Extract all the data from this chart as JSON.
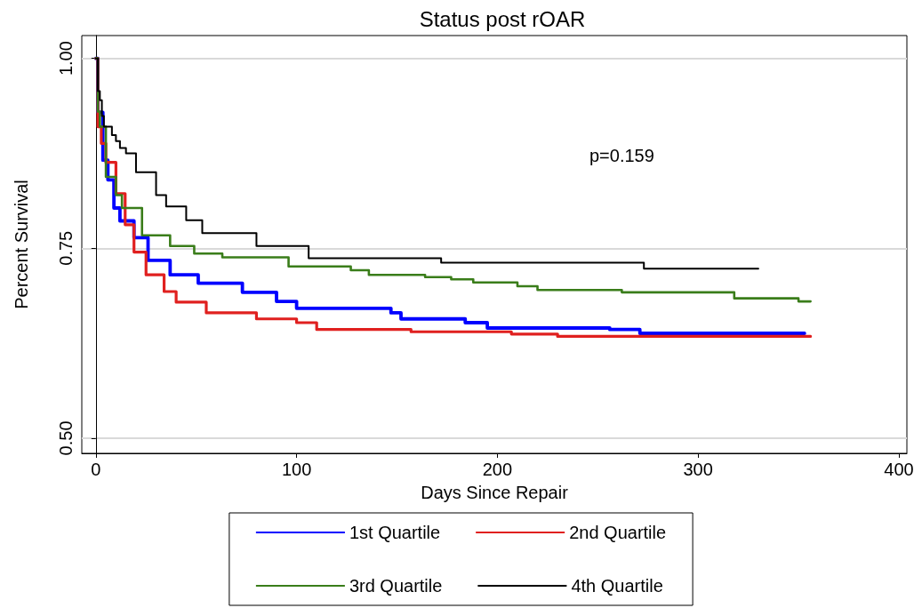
{
  "chart_data": {
    "type": "step",
    "title": "Status post rOAR",
    "xlabel": "Days Since Repair",
    "ylabel": "Percent Survival",
    "annotations": [
      "p=0.159"
    ],
    "xlim": [
      -7,
      404
    ],
    "xticks": [
      0,
      100,
      200,
      300,
      400
    ],
    "ylim": [
      0.48,
      1.03
    ],
    "yticks": [
      {
        "value": 0.5,
        "label": "0.50"
      },
      {
        "value": 0.75,
        "label": "0.75"
      },
      {
        "value": 1,
        "label": "1.00"
      }
    ],
    "grid": "y",
    "legend": "bottom",
    "marker": "none",
    "line_style": "solid",
    "series": [
      {
        "name": "1st Quartile",
        "color": "#0000ff",
        "x": [
          0,
          1,
          3.5,
          6,
          9,
          12,
          19,
          26,
          37,
          51,
          73,
          90,
          100,
          147,
          152,
          184,
          195,
          256,
          271,
          353
        ],
        "values": [
          1,
          0.929,
          0.866,
          0.84,
          0.803,
          0.786,
          0.764,
          0.734,
          0.715,
          0.704,
          0.692,
          0.68,
          0.671,
          0.665,
          0.657,
          0.652,
          0.645,
          0.643,
          0.638,
          0.638
        ]
      },
      {
        "name": "2nd Quartile",
        "color": "#e0201f",
        "x": [
          0,
          1,
          2.7,
          5,
          10,
          14.6,
          19,
          25,
          34,
          40,
          55,
          80,
          100,
          110,
          157,
          207,
          230,
          356
        ],
        "values": [
          1,
          0.91,
          0.888,
          0.863,
          0.822,
          0.781,
          0.745,
          0.715,
          0.693,
          0.679,
          0.665,
          0.657,
          0.652,
          0.643,
          0.64,
          0.637,
          0.634,
          0.634
        ]
      },
      {
        "name": "3rd Quartile",
        "color": "#3a7d1a",
        "x": [
          0,
          1,
          2,
          5,
          10,
          13,
          23,
          37,
          49,
          63,
          96,
          127,
          136,
          164,
          177,
          188,
          210,
          220,
          262,
          318,
          350,
          356
        ],
        "values": [
          1,
          0.93,
          0.91,
          0.844,
          0.82,
          0.803,
          0.767,
          0.753,
          0.743,
          0.738,
          0.726,
          0.721,
          0.715,
          0.712,
          0.709,
          0.705,
          0.7,
          0.695,
          0.692,
          0.684,
          0.68,
          0.68
        ]
      },
      {
        "name": "4th Quartile",
        "color": "#000000",
        "x": [
          0,
          1,
          2,
          3,
          4,
          8,
          10,
          12,
          15,
          20,
          30,
          35,
          45,
          53,
          80,
          106,
          172,
          273,
          330
        ],
        "values": [
          1,
          0.957,
          0.945,
          0.924,
          0.91,
          0.899,
          0.891,
          0.882,
          0.875,
          0.85,
          0.82,
          0.805,
          0.787,
          0.77,
          0.753,
          0.737,
          0.731,
          0.723,
          0.723
        ]
      }
    ]
  }
}
